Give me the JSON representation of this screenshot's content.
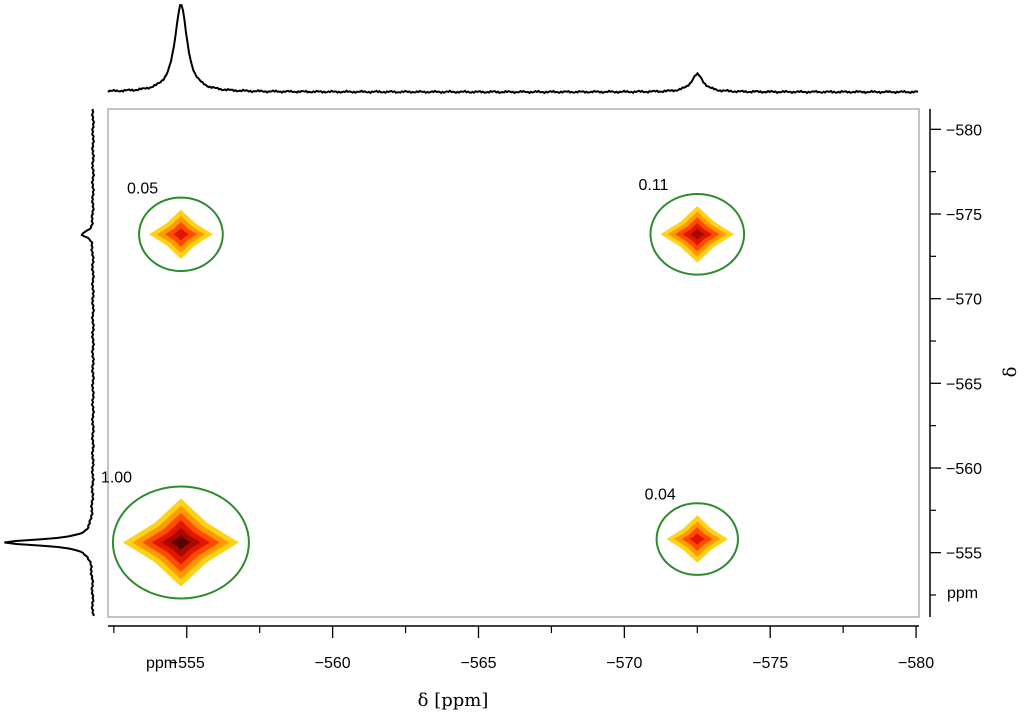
{
  "chart_data": {
    "type": "heatmap",
    "subtype": "2D NMR correlation spectrum with projections",
    "xlabel": "δ [ppm]",
    "ylabel": "δ",
    "x_unit_label": "ppm",
    "y_unit_label": "ppm",
    "xlim": [
      -552.3,
      -580.1
    ],
    "ylim": [
      -551.2,
      -581.2
    ],
    "x_ticks": [
      -555,
      -560,
      -565,
      -570,
      -575,
      -580
    ],
    "x_tick_labels": [
      "−555",
      "−560",
      "−565",
      "−570",
      "−575",
      "−580"
    ],
    "y_ticks": [
      -555,
      -560,
      -565,
      -570,
      -575,
      -580
    ],
    "y_tick_labels": [
      "−555",
      "−560",
      "−565",
      "−570",
      "−575",
      "−580"
    ],
    "colormap": [
      "#ffd21a",
      "#ff9900",
      "#ff4a00",
      "#e01600",
      "#a80800",
      "#5a0200"
    ],
    "highlight_color": "#2e8b2e",
    "peaks": [
      {
        "label": "1.00",
        "x": -554.8,
        "y": -555.6,
        "intensity": 1.0
      },
      {
        "label": "0.05",
        "x": -554.8,
        "y": -573.8,
        "intensity": 0.05
      },
      {
        "label": "0.11",
        "x": -572.5,
        "y": -573.8,
        "intensity": 0.11
      },
      {
        "label": "0.04",
        "x": -572.5,
        "y": -555.8,
        "intensity": 0.04
      }
    ],
    "top_projection": {
      "peaks": [
        {
          "x": -554.8,
          "height": 1.0
        },
        {
          "x": -572.5,
          "height": 0.2
        }
      ]
    },
    "left_projection": {
      "peaks": [
        {
          "y": -555.6,
          "height": 1.0
        },
        {
          "y": -573.8,
          "height": 0.12
        }
      ]
    }
  }
}
